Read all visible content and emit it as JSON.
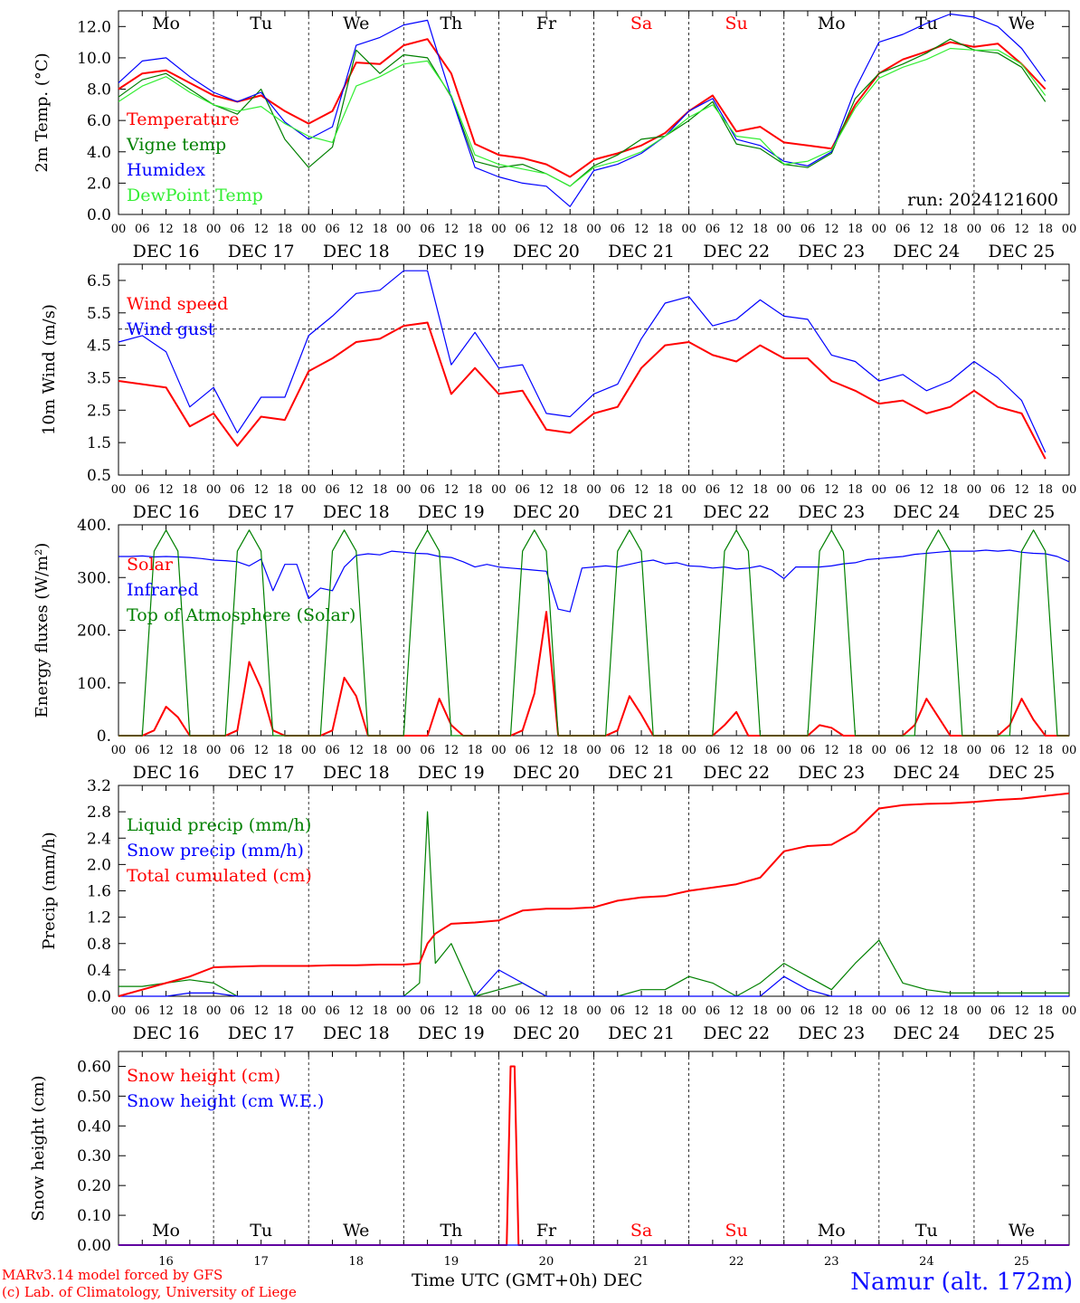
{
  "colors": {
    "red": "#ff0000",
    "green": "#008000",
    "blue": "#0000ff",
    "lightgreen": "#33ee33",
    "weekend": "#ff0000",
    "weekday": "#000000"
  },
  "days": [
    {
      "abbr": "Mo",
      "date": "DEC 16",
      "num": "16",
      "weekend": false
    },
    {
      "abbr": "Tu",
      "date": "DEC 17",
      "num": "17",
      "weekend": false
    },
    {
      "abbr": "We",
      "date": "DEC 18",
      "num": "18",
      "weekend": false
    },
    {
      "abbr": "Th",
      "date": "DEC 19",
      "num": "19",
      "weekend": false
    },
    {
      "abbr": "Fr",
      "date": "DEC 20",
      "num": "20",
      "weekend": false
    },
    {
      "abbr": "Sa",
      "date": "DEC 21",
      "num": "21",
      "weekend": true
    },
    {
      "abbr": "Su",
      "date": "DEC 22",
      "num": "22",
      "weekend": true
    },
    {
      "abbr": "Mo",
      "date": "DEC 23",
      "num": "23",
      "weekend": false
    },
    {
      "abbr": "Tu",
      "date": "DEC 24",
      "num": "24",
      "weekend": false
    },
    {
      "abbr": "We",
      "date": "DEC 25",
      "num": "25",
      "weekend": false
    }
  ],
  "hour_ticks": [
    "00",
    "06",
    "12",
    "18"
  ],
  "final_tick": "00",
  "footer": {
    "model": "MARv3.14 model forced by GFS",
    "lab": "(c) Lab. of Climatology, University of Liege",
    "xlabel": "Time UTC (GMT+0h) DEC",
    "station": "Namur (alt. 172m)"
  },
  "chart_data": [
    {
      "type": "line",
      "id": "temperature",
      "ylabel": "2m Temp. (°C)",
      "ylim": [
        0,
        13
      ],
      "yticks": [
        "0.0",
        "2.0",
        "4.0",
        "6.0",
        "8.0",
        "10.0",
        "12.0"
      ],
      "annotation": "run: 2024121600",
      "x_hours": [
        0,
        6,
        12,
        18,
        24,
        30,
        36,
        42,
        48,
        54,
        60,
        66,
        72,
        78,
        84,
        90,
        96,
        102,
        108,
        114,
        120,
        126,
        132,
        138,
        144,
        150,
        156,
        162,
        168,
        174,
        180,
        186,
        192,
        198,
        204,
        210,
        216,
        222,
        228,
        234
      ],
      "series": [
        {
          "name": "Temperature",
          "color": "red",
          "values": [
            8.0,
            9.0,
            9.2,
            8.4,
            7.6,
            7.2,
            7.6,
            6.6,
            5.8,
            6.6,
            9.7,
            9.6,
            10.8,
            11.2,
            9.0,
            4.5,
            3.8,
            3.6,
            3.2,
            2.4,
            3.5,
            3.9,
            4.4,
            5.2,
            6.6,
            7.6,
            5.3,
            5.6,
            4.6,
            4.4,
            4.2,
            7.0,
            9.0,
            9.9,
            10.4,
            11.0,
            10.7,
            10.9,
            9.6,
            8.0
          ]
        },
        {
          "name": "Vigne temp",
          "color": "green",
          "values": [
            7.5,
            8.6,
            9.0,
            8.0,
            7.0,
            6.4,
            8.0,
            4.8,
            3.0,
            4.3,
            10.5,
            9.0,
            10.2,
            10.0,
            7.5,
            3.4,
            3.0,
            3.2,
            2.6,
            1.8,
            3.1,
            3.8,
            4.8,
            5.0,
            6.0,
            7.2,
            4.5,
            4.2,
            3.2,
            3.0,
            3.9,
            7.4,
            9.0,
            9.6,
            10.3,
            11.2,
            10.5,
            10.3,
            9.4,
            7.2
          ]
        },
        {
          "name": "Humidex",
          "color": "blue",
          "values": [
            8.4,
            9.8,
            10.0,
            8.8,
            7.8,
            7.2,
            7.8,
            5.9,
            4.8,
            5.6,
            10.8,
            11.3,
            12.1,
            12.4,
            7.5,
            3.0,
            2.4,
            2.0,
            1.8,
            0.5,
            2.8,
            3.2,
            3.9,
            5.0,
            6.6,
            7.4,
            4.8,
            4.4,
            3.4,
            3.1,
            4.0,
            8.0,
            11.0,
            11.5,
            12.2,
            12.8,
            12.6,
            12.0,
            10.6,
            8.5
          ]
        },
        {
          "name": "DewPoint Temp",
          "color": "lightgreen",
          "values": [
            7.2,
            8.2,
            8.8,
            7.8,
            7.0,
            6.6,
            6.9,
            5.8,
            5.0,
            4.6,
            8.2,
            8.8,
            9.6,
            9.8,
            7.6,
            3.8,
            3.2,
            2.9,
            2.6,
            1.8,
            3.0,
            3.4,
            4.0,
            5.0,
            6.2,
            7.0,
            5.0,
            4.8,
            3.2,
            3.4,
            4.1,
            6.8,
            8.7,
            9.4,
            9.9,
            10.6,
            10.5,
            10.5,
            9.6,
            7.6
          ]
        }
      ]
    },
    {
      "type": "line",
      "id": "wind",
      "ylabel": "10m Wind (m/s)",
      "ylim": [
        0.5,
        7.0
      ],
      "yticks": [
        "0.5",
        "1.5",
        "2.5",
        "3.5",
        "4.5",
        "5.5",
        "6.5"
      ],
      "reference_line": 5.0,
      "x_hours": [
        0,
        6,
        12,
        18,
        24,
        30,
        36,
        42,
        48,
        54,
        60,
        66,
        72,
        78,
        84,
        90,
        96,
        102,
        108,
        114,
        120,
        126,
        132,
        138,
        144,
        150,
        156,
        162,
        168,
        174,
        180,
        186,
        192,
        198,
        204,
        210,
        216,
        222,
        228,
        234
      ],
      "series": [
        {
          "name": "Wind speed",
          "color": "red",
          "values": [
            3.4,
            3.3,
            3.2,
            2.0,
            2.4,
            1.4,
            2.3,
            2.2,
            3.7,
            4.1,
            4.6,
            4.7,
            5.1,
            5.2,
            3.0,
            3.8,
            3.0,
            3.1,
            1.9,
            1.8,
            2.4,
            2.6,
            3.8,
            4.5,
            4.6,
            4.2,
            4.0,
            4.5,
            4.1,
            4.1,
            3.4,
            3.1,
            2.7,
            2.8,
            2.4,
            2.6,
            3.1,
            2.6,
            2.4,
            1.0
          ]
        },
        {
          "name": "Wind gust",
          "color": "blue",
          "values": [
            4.6,
            4.8,
            4.3,
            2.6,
            3.2,
            1.8,
            2.9,
            2.9,
            4.8,
            5.4,
            6.1,
            6.2,
            6.8,
            6.8,
            3.9,
            4.9,
            3.8,
            3.9,
            2.4,
            2.3,
            3.0,
            3.3,
            4.7,
            5.8,
            6.0,
            5.1,
            5.3,
            5.9,
            5.4,
            5.3,
            4.2,
            4.0,
            3.4,
            3.6,
            3.1,
            3.4,
            4.0,
            3.5,
            2.8,
            1.2
          ]
        }
      ]
    },
    {
      "type": "line",
      "id": "energy",
      "ylabel": "Energy fluxes (W/m²)",
      "ylim": [
        0,
        400
      ],
      "yticks": [
        "0.",
        "100.",
        "200.",
        "300.",
        "400."
      ],
      "x_hours": [
        0,
        3,
        6,
        9,
        12,
        15,
        18,
        21,
        24,
        27,
        30,
        33,
        36,
        39,
        42,
        45,
        48,
        51,
        54,
        57,
        60,
        63,
        66,
        69,
        72,
        75,
        78,
        81,
        84,
        87,
        90,
        93,
        96,
        99,
        102,
        105,
        108,
        111,
        114,
        117,
        120,
        123,
        126,
        129,
        132,
        135,
        138,
        141,
        144,
        147,
        150,
        153,
        156,
        159,
        162,
        165,
        168,
        171,
        174,
        177,
        180,
        183,
        186,
        189,
        192,
        195,
        198,
        201,
        204,
        207,
        210,
        213,
        216,
        219,
        222,
        225,
        228,
        231,
        234,
        237,
        240
      ],
      "series": [
        {
          "name": "Solar",
          "color": "red",
          "values": [
            0,
            0,
            0,
            10,
            55,
            35,
            0,
            0,
            0,
            0,
            10,
            140,
            90,
            10,
            0,
            0,
            0,
            0,
            10,
            110,
            75,
            0,
            0,
            0,
            0,
            0,
            0,
            70,
            20,
            0,
            0,
            0,
            0,
            0,
            10,
            80,
            235,
            0,
            0,
            0,
            0,
            0,
            10,
            75,
            40,
            0,
            0,
            0,
            0,
            0,
            0,
            20,
            45,
            0,
            0,
            0,
            0,
            0,
            0,
            20,
            15,
            0,
            0,
            0,
            0,
            0,
            0,
            20,
            70,
            35,
            0,
            0,
            0,
            0,
            0,
            20,
            70,
            30,
            0,
            0,
            0
          ]
        },
        {
          "name": "Infrared",
          "color": "blue",
          "values": [
            340,
            340,
            341,
            339,
            340,
            339,
            338,
            336,
            333,
            332,
            330,
            322,
            335,
            275,
            325,
            325,
            260,
            280,
            275,
            320,
            342,
            345,
            343,
            350,
            348,
            346,
            345,
            340,
            338,
            330,
            320,
            325,
            320,
            318,
            316,
            314,
            312,
            240,
            235,
            318,
            320,
            322,
            320,
            325,
            330,
            333,
            326,
            328,
            322,
            321,
            318,
            320,
            316,
            318,
            322,
            314,
            298,
            320,
            320,
            320,
            322,
            326,
            328,
            334,
            336,
            338,
            340,
            344,
            346,
            348,
            350,
            350,
            350,
            352,
            350,
            352,
            348,
            346,
            345,
            340,
            330
          ]
        },
        {
          "name": "Top of Atmosphere (Solar)",
          "color": "green",
          "values": [
            0,
            0,
            0,
            350,
            390,
            350,
            0,
            0,
            0,
            0,
            350,
            390,
            350,
            0,
            0,
            0,
            0,
            0,
            350,
            390,
            350,
            0,
            0,
            0,
            0,
            350,
            390,
            350,
            0,
            0,
            0,
            0,
            0,
            0,
            350,
            390,
            350,
            0,
            0,
            0,
            0,
            0,
            350,
            390,
            350,
            0,
            0,
            0,
            0,
            0,
            0,
            350,
            390,
            350,
            0,
            0,
            0,
            0,
            0,
            350,
            390,
            350,
            0,
            0,
            0,
            0,
            0,
            0,
            350,
            390,
            350,
            0,
            0,
            0,
            0,
            0,
            350,
            390,
            350,
            0,
            0
          ]
        }
      ]
    },
    {
      "type": "line",
      "id": "precip",
      "ylabel": "Precip (mm/h)",
      "ylim": [
        0,
        3.2
      ],
      "yticks": [
        "0.0",
        "0.4",
        "0.8",
        "1.2",
        "1.6",
        "2.0",
        "2.4",
        "2.8",
        "3.2"
      ],
      "x_hours": [
        0,
        6,
        12,
        18,
        24,
        30,
        36,
        42,
        48,
        54,
        60,
        66,
        72,
        76,
        78,
        80,
        84,
        90,
        96,
        102,
        108,
        114,
        120,
        126,
        132,
        138,
        144,
        150,
        156,
        162,
        168,
        174,
        180,
        186,
        192,
        198,
        204,
        210,
        216,
        222,
        228,
        234,
        240
      ],
      "series": [
        {
          "name": "Liquid precip (mm/h)",
          "color": "green",
          "values": [
            0.15,
            0.15,
            0.2,
            0.25,
            0.2,
            0,
            0,
            0,
            0,
            0,
            0,
            0,
            0,
            0.2,
            2.8,
            0.5,
            0.8,
            0,
            0.1,
            0.2,
            0,
            0,
            0,
            0,
            0.1,
            0.1,
            0.3,
            0.2,
            0,
            0.2,
            0.5,
            0.3,
            0.1,
            0.5,
            0.85,
            0.2,
            0.1,
            0.05,
            0.05,
            0.05,
            0.05,
            0.05,
            0.05
          ]
        },
        {
          "name": "Snow precip (mm/h)",
          "color": "blue",
          "values": [
            0,
            0,
            0,
            0.05,
            0.05,
            0,
            0,
            0,
            0,
            0,
            0,
            0,
            0,
            0,
            0,
            0,
            0,
            0,
            0.4,
            0.2,
            0,
            0,
            0,
            0,
            0,
            0,
            0,
            0,
            0,
            0,
            0.3,
            0.1,
            0,
            0,
            0,
            0,
            0,
            0,
            0,
            0,
            0,
            0,
            0
          ]
        },
        {
          "name": "Total cumulated (cm)",
          "color": "red",
          "values": [
            0.0,
            0.1,
            0.2,
            0.3,
            0.44,
            0.45,
            0.46,
            0.46,
            0.46,
            0.47,
            0.47,
            0.48,
            0.48,
            0.5,
            0.8,
            0.95,
            1.1,
            1.12,
            1.15,
            1.3,
            1.33,
            1.33,
            1.35,
            1.45,
            1.5,
            1.52,
            1.6,
            1.65,
            1.7,
            1.8,
            2.2,
            2.28,
            2.3,
            2.5,
            2.85,
            2.9,
            2.92,
            2.93,
            2.95,
            2.98,
            3.0,
            3.04,
            3.08
          ]
        }
      ]
    },
    {
      "type": "line",
      "id": "snow",
      "ylabel": "Snow height (cm)",
      "ylim": [
        0,
        0.65
      ],
      "yticks": [
        "0.00",
        "0.10",
        "0.20",
        "0.30",
        "0.40",
        "0.50",
        "0.60"
      ],
      "x_hours": [
        0,
        98,
        99,
        100,
        101,
        240
      ],
      "series": [
        {
          "name": "Snow height (cm)",
          "color": "red",
          "values": [
            0,
            0,
            0.6,
            0.6,
            0,
            0
          ]
        },
        {
          "name": "Snow height (cm W.E.)",
          "color": "blue",
          "values": [
            0,
            0,
            0,
            0,
            0,
            0
          ]
        }
      ]
    }
  ]
}
